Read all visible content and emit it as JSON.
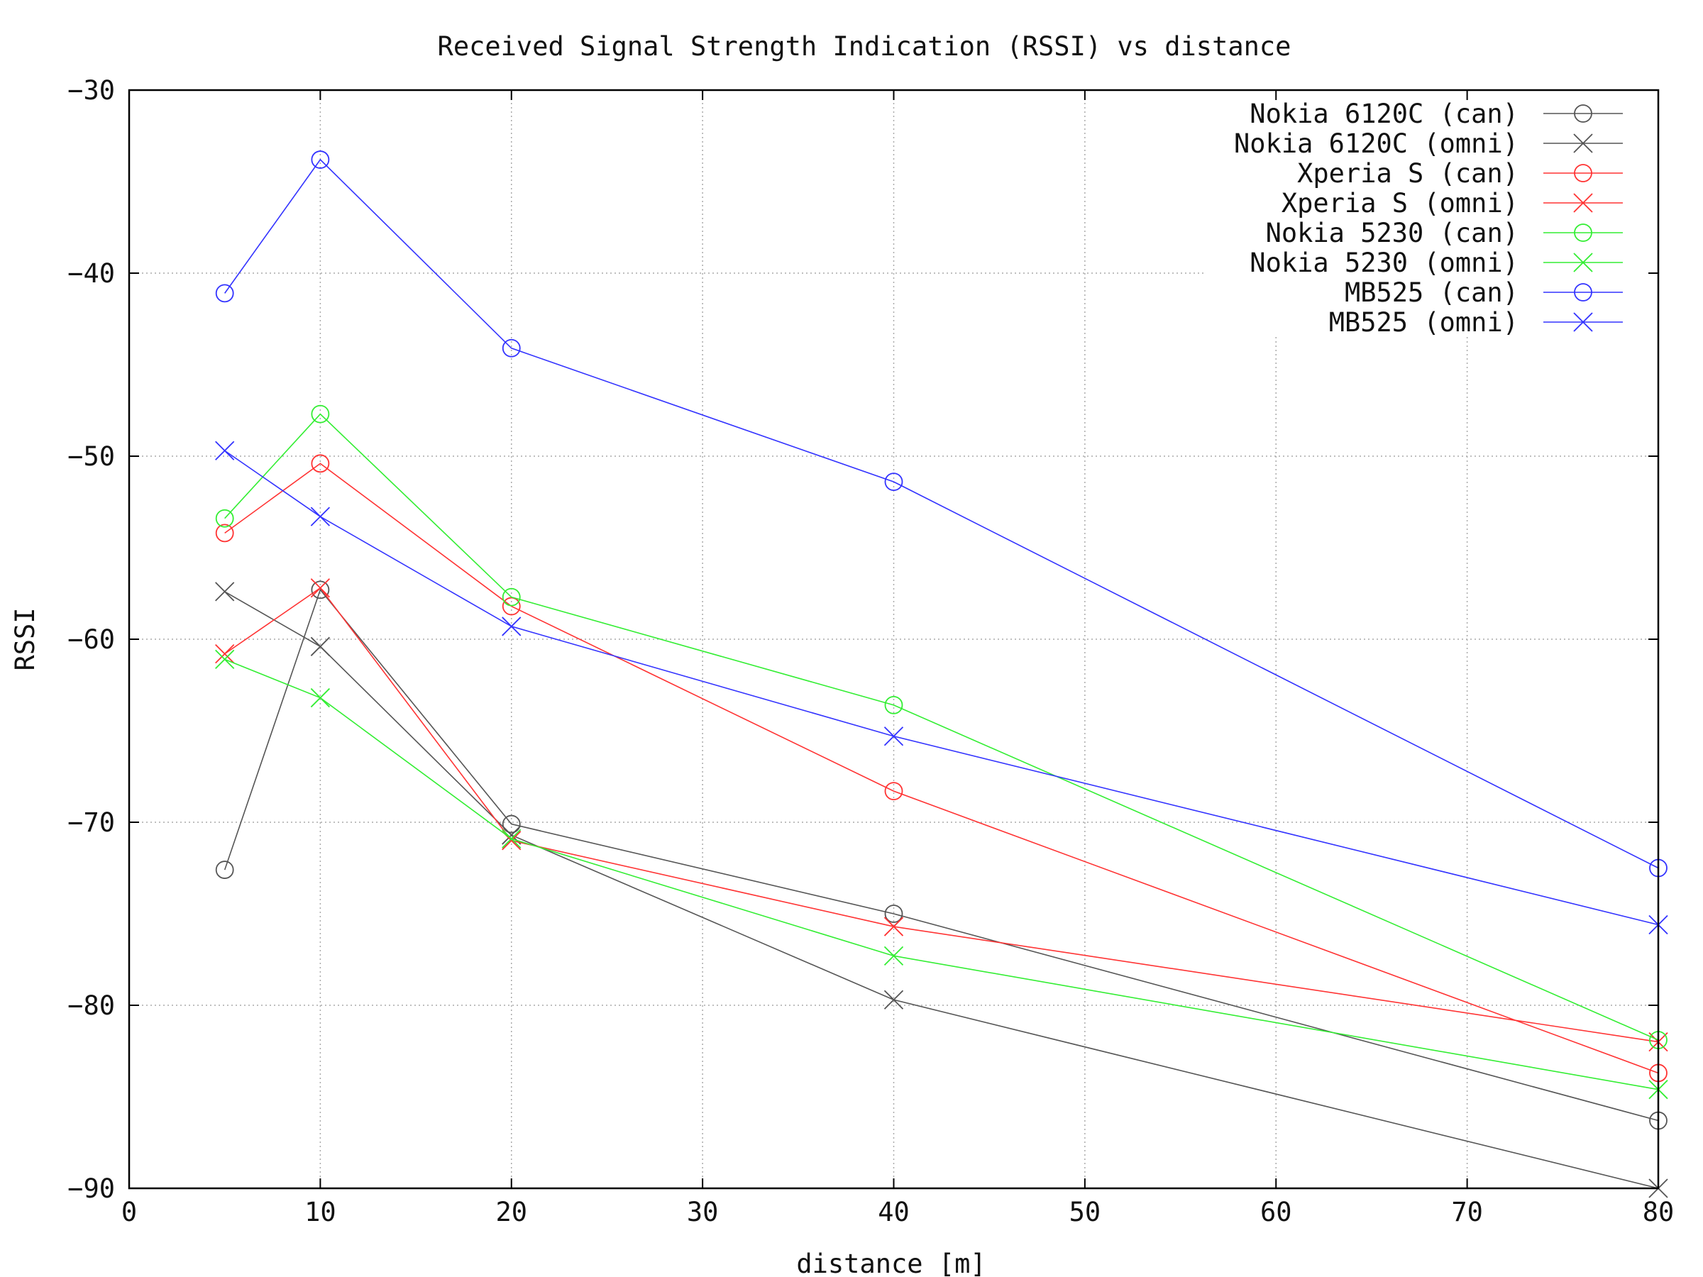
{
  "chart_data": {
    "type": "line",
    "title": "Received Signal Strength Indication (RSSI) vs distance",
    "xlabel": "distance [m]",
    "ylabel": "RSSI",
    "xlim": [
      0,
      80
    ],
    "ylim": [
      -90,
      -30
    ],
    "xticks": [
      0,
      10,
      20,
      30,
      40,
      50,
      60,
      70,
      80
    ],
    "yticks": [
      -90,
      -80,
      -70,
      -60,
      -50,
      -40,
      -30
    ],
    "grid": true,
    "legend_position": "top-right",
    "x": [
      5,
      10,
      20,
      40,
      80
    ],
    "series": [
      {
        "name": "Nokia 6120C (can)",
        "color": "#555555",
        "marker": "circle",
        "values": [
          -72.6,
          -57.3,
          -70.1,
          -75.0,
          -86.3
        ]
      },
      {
        "name": "Nokia 6120C (omni)",
        "color": "#555555",
        "marker": "cross",
        "values": [
          -57.4,
          -60.4,
          -70.7,
          -79.7,
          -90.0
        ]
      },
      {
        "name": "Xperia S (can)",
        "color": "#ff3333",
        "marker": "circle",
        "values": [
          -54.2,
          -50.4,
          -58.2,
          -68.3,
          -83.7
        ]
      },
      {
        "name": "Xperia S (omni)",
        "color": "#ff3333",
        "marker": "cross",
        "values": [
          -60.8,
          -57.2,
          -71.0,
          -75.7,
          -82.0
        ]
      },
      {
        "name": "Nokia 5230 (can)",
        "color": "#33ee33",
        "marker": "circle",
        "values": [
          -53.4,
          -47.7,
          -57.7,
          -63.6,
          -81.9
        ]
      },
      {
        "name": "Nokia 5230 (omni)",
        "color": "#33ee33",
        "marker": "cross",
        "values": [
          -61.1,
          -63.2,
          -70.9,
          -77.3,
          -84.6
        ]
      },
      {
        "name": "MB525 (can)",
        "color": "#3333ff",
        "marker": "circle",
        "values": [
          -41.1,
          -33.8,
          -44.1,
          -51.4,
          -72.5
        ]
      },
      {
        "name": "MB525 (omni)",
        "color": "#3333ff",
        "marker": "cross",
        "values": [
          -49.7,
          -53.3,
          -59.3,
          -65.3,
          -75.6
        ]
      }
    ]
  }
}
